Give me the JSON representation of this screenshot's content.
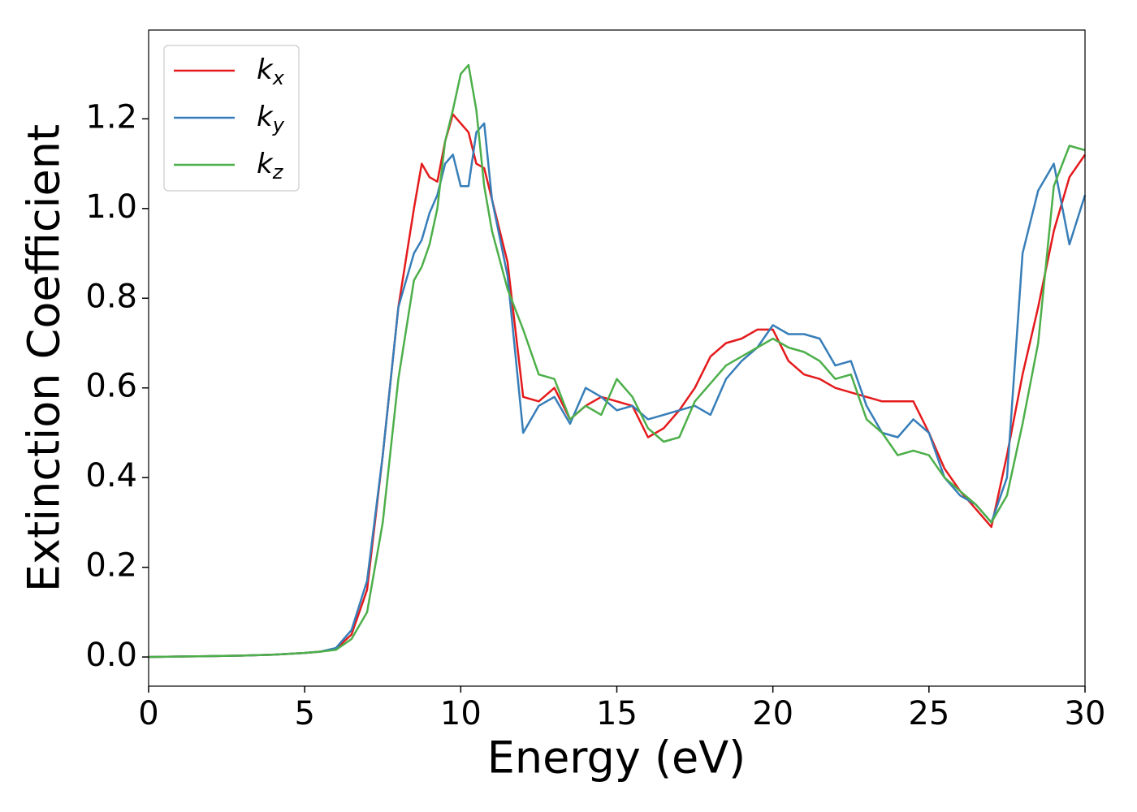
{
  "chart_data": {
    "type": "line",
    "xlabel": "Energy (eV)",
    "ylabel": "Extinction Coefficient",
    "x": [
      0,
      1,
      2,
      3,
      4,
      5,
      5.5,
      6,
      6.5,
      7,
      7.5,
      8,
      8.5,
      8.75,
      9,
      9.25,
      9.5,
      9.75,
      10,
      10.25,
      10.5,
      10.75,
      11,
      11.5,
      12,
      12.5,
      13,
      13.5,
      14,
      14.5,
      15,
      15.5,
      16,
      16.5,
      17,
      17.5,
      18,
      18.5,
      19,
      19.5,
      20,
      20.5,
      21,
      21.5,
      22,
      22.5,
      23,
      23.5,
      24,
      24.5,
      25,
      25.5,
      26,
      26.5,
      27,
      27.5,
      28,
      28.5,
      29,
      29.5,
      30
    ],
    "series": [
      {
        "name": "kx",
        "color": "#e41a1c",
        "values": [
          0,
          0.001,
          0.002,
          0.003,
          0.005,
          0.009,
          0.012,
          0.018,
          0.05,
          0.15,
          0.45,
          0.78,
          1.0,
          1.1,
          1.07,
          1.06,
          1.15,
          1.21,
          1.19,
          1.17,
          1.1,
          1.09,
          1.02,
          0.88,
          0.58,
          0.57,
          0.6,
          0.53,
          0.56,
          0.58,
          0.57,
          0.56,
          0.49,
          0.51,
          0.55,
          0.6,
          0.67,
          0.7,
          0.71,
          0.73,
          0.73,
          0.66,
          0.63,
          0.62,
          0.6,
          0.59,
          0.58,
          0.57,
          0.57,
          0.57,
          0.5,
          0.42,
          0.37,
          0.33,
          0.29,
          0.45,
          0.63,
          0.78,
          0.95,
          1.07,
          1.12
        ]
      },
      {
        "name": "ky",
        "color": "#377eb8",
        "values": [
          0,
          0.001,
          0.002,
          0.003,
          0.005,
          0.009,
          0.012,
          0.02,
          0.06,
          0.17,
          0.45,
          0.78,
          0.9,
          0.93,
          0.99,
          1.03,
          1.1,
          1.12,
          1.05,
          1.05,
          1.17,
          1.19,
          1.02,
          0.85,
          0.5,
          0.56,
          0.58,
          0.52,
          0.6,
          0.58,
          0.55,
          0.56,
          0.53,
          0.54,
          0.55,
          0.56,
          0.54,
          0.62,
          0.66,
          0.69,
          0.74,
          0.72,
          0.72,
          0.71,
          0.65,
          0.66,
          0.56,
          0.5,
          0.49,
          0.53,
          0.5,
          0.4,
          0.36,
          0.34,
          0.3,
          0.4,
          0.9,
          1.04,
          1.1,
          0.92,
          1.03
        ]
      },
      {
        "name": "kz",
        "color": "#4daf4a",
        "values": [
          0,
          0.001,
          0.002,
          0.003,
          0.005,
          0.009,
          0.012,
          0.016,
          0.04,
          0.1,
          0.3,
          0.62,
          0.84,
          0.87,
          0.92,
          1.0,
          1.15,
          1.22,
          1.3,
          1.32,
          1.22,
          1.05,
          0.95,
          0.82,
          0.73,
          0.63,
          0.62,
          0.53,
          0.56,
          0.54,
          0.62,
          0.58,
          0.51,
          0.48,
          0.49,
          0.57,
          0.61,
          0.65,
          0.67,
          0.69,
          0.71,
          0.69,
          0.68,
          0.66,
          0.62,
          0.63,
          0.53,
          0.5,
          0.45,
          0.46,
          0.45,
          0.4,
          0.37,
          0.34,
          0.3,
          0.36,
          0.52,
          0.7,
          1.05,
          1.14,
          1.13
        ]
      }
    ],
    "xlim": [
      0,
      30
    ],
    "xticks": [
      0,
      5,
      10,
      15,
      20,
      25,
      30
    ],
    "ylim": [
      -0.065,
      1.398
    ],
    "yticks": [
      {
        "value": 0,
        "label": "0.0"
      },
      {
        "value": 0.2,
        "label": "0.2"
      },
      {
        "value": 0.4,
        "label": "0.4"
      },
      {
        "value": 0.6,
        "label": "0.6"
      },
      {
        "value": 0.8,
        "label": "0.8"
      },
      {
        "value": 1.0,
        "label": "1.0"
      },
      {
        "value": 1.2,
        "label": "1.2"
      }
    ],
    "legend": "upper left"
  }
}
